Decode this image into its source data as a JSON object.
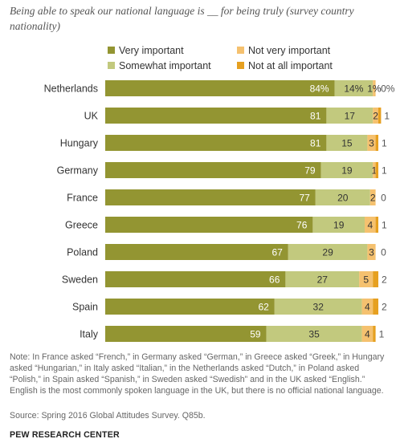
{
  "subtitle": "Being able to speak our national language is __ for being truly (survey country nationality)",
  "colors": {
    "very_important": "#939532",
    "somewhat_important": "#c2c97e",
    "not_very_important": "#f5c16f",
    "not_at_all_important": "#e6a020"
  },
  "chart_data": {
    "type": "bar",
    "orientation": "horizontal",
    "stacked": true,
    "categories": [
      "Netherlands",
      "UK",
      "Hungary",
      "Germany",
      "France",
      "Greece",
      "Poland",
      "Sweden",
      "Spain",
      "Italy"
    ],
    "series": [
      {
        "name": "Very important",
        "values": [
          84,
          81,
          81,
          79,
          77,
          76,
          67,
          66,
          62,
          59
        ],
        "labels": [
          "84%",
          "81",
          "81",
          "79",
          "77",
          "76",
          "67",
          "66",
          "62",
          "59"
        ]
      },
      {
        "name": "Somewhat important",
        "values": [
          14,
          17,
          15,
          19,
          20,
          19,
          29,
          27,
          32,
          35
        ],
        "labels": [
          "14%",
          "17",
          "15",
          "19",
          "20",
          "19",
          "29",
          "27",
          "32",
          "35"
        ]
      },
      {
        "name": "Not very important",
        "values": [
          1,
          2,
          3,
          1,
          2,
          4,
          3,
          5,
          4,
          4
        ],
        "labels": [
          "1%",
          "2",
          "3",
          "1",
          "2",
          "4",
          "3",
          "5",
          "4",
          "4"
        ]
      },
      {
        "name": "Not at all important",
        "values": [
          0,
          1,
          1,
          1,
          0,
          1,
          0,
          2,
          2,
          1
        ],
        "labels": [
          "0%",
          "1",
          "1",
          "1",
          "0",
          "1",
          "0",
          "2",
          "2",
          "1"
        ]
      }
    ],
    "legend": [
      "Very important",
      "Somewhat important",
      "Not very important",
      "Not at all important"
    ],
    "legend_position": "top",
    "xlim": [
      0,
      100
    ],
    "grid": false
  },
  "note": "Note: In France asked “French,” in Germany asked “German,” in Greece asked “Greek,” in Hungary asked “Hungarian,” in Italy asked “Italian,” in the Netherlands asked “Dutch,” in Poland asked “Polish,” in Spain asked “Spanish,” in Sweden asked “Swedish” and in the UK asked “English.” English is the most commonly spoken language in the UK, but there is no official national language.",
  "source": "Source: Spring 2016 Global Attitudes Survey. Q85b.",
  "organization": "PEW RESEARCH CENTER"
}
